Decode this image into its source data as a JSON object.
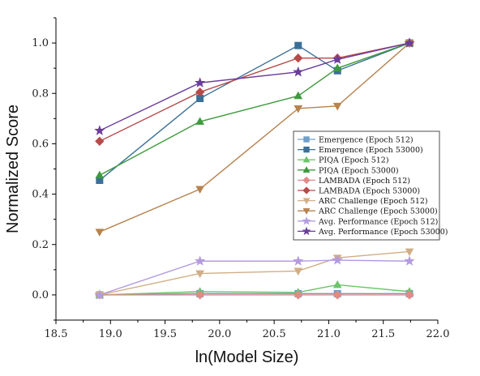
{
  "chart_data": {
    "type": "line",
    "xlabel": "ln(Model Size)",
    "ylabel": "Normalized Score",
    "xlim": [
      18.5,
      22.0
    ],
    "ylim": [
      -0.1,
      1.1
    ],
    "xticks": [
      18.5,
      19.0,
      19.5,
      20.0,
      20.5,
      21.0,
      21.5,
      22.0
    ],
    "xtick_labels": [
      "18.5",
      "19.0",
      "19.5",
      "20.0",
      "20.5",
      "21.0",
      "21.5",
      "22.0"
    ],
    "yticks": [
      0.0,
      0.2,
      0.4,
      0.6,
      0.8,
      1.0
    ],
    "ytick_labels": [
      "0.0",
      "0.2",
      "0.4",
      "0.6",
      "0.8",
      "1.0"
    ],
    "legend_position": "center-right",
    "grid": false,
    "x": [
      18.9,
      19.82,
      20.72,
      21.08,
      21.74
    ],
    "series": [
      {
        "name": "Emergence (Epoch 512)",
        "values": [
          0.0,
          0.005,
          0.005,
          0.005,
          0.005
        ],
        "color": "#6f9fc8",
        "marker": "square"
      },
      {
        "name": "Emergence (Epoch 53000)",
        "values": [
          0.455,
          0.78,
          0.99,
          0.89,
          1.0
        ],
        "color": "#3b6f98",
        "marker": "square"
      },
      {
        "name": "PIQA (Epoch 512)",
        "values": [
          0.0,
          0.013,
          0.01,
          0.04,
          0.013
        ],
        "color": "#6cc46c",
        "marker": "triangle-up"
      },
      {
        "name": "PIQA (Epoch 53000)",
        "values": [
          0.475,
          0.688,
          0.79,
          0.9,
          1.0
        ],
        "color": "#3e9a3e",
        "marker": "triangle-up"
      },
      {
        "name": "LAMBADA (Epoch 512)",
        "values": [
          0.0,
          0.0,
          0.0,
          0.0,
          0.0
        ],
        "color": "#e08a8a",
        "marker": "diamond"
      },
      {
        "name": "LAMBADA (Epoch 53000)",
        "values": [
          0.61,
          0.805,
          0.94,
          0.94,
          1.0
        ],
        "color": "#b84a4a",
        "marker": "diamond"
      },
      {
        "name": "ARC Challenge (Epoch 512)",
        "values": [
          0.0,
          0.085,
          0.095,
          0.147,
          0.172
        ],
        "color": "#d1ae85",
        "marker": "triangle-down"
      },
      {
        "name": "ARC Challenge (Epoch 53000)",
        "values": [
          0.25,
          0.42,
          0.74,
          0.75,
          1.0
        ],
        "color": "#b7834f",
        "marker": "triangle-down"
      },
      {
        "name": "Avg. Performance (Epoch 512)",
        "values": [
          0.0,
          0.134,
          0.134,
          0.138,
          0.134
        ],
        "color": "#b49be0",
        "marker": "star"
      },
      {
        "name": "Avg. Performance (Epoch 53000)",
        "values": [
          0.652,
          0.842,
          0.885,
          0.935,
          1.0
        ],
        "color": "#6a3d9a",
        "marker": "star"
      }
    ]
  }
}
